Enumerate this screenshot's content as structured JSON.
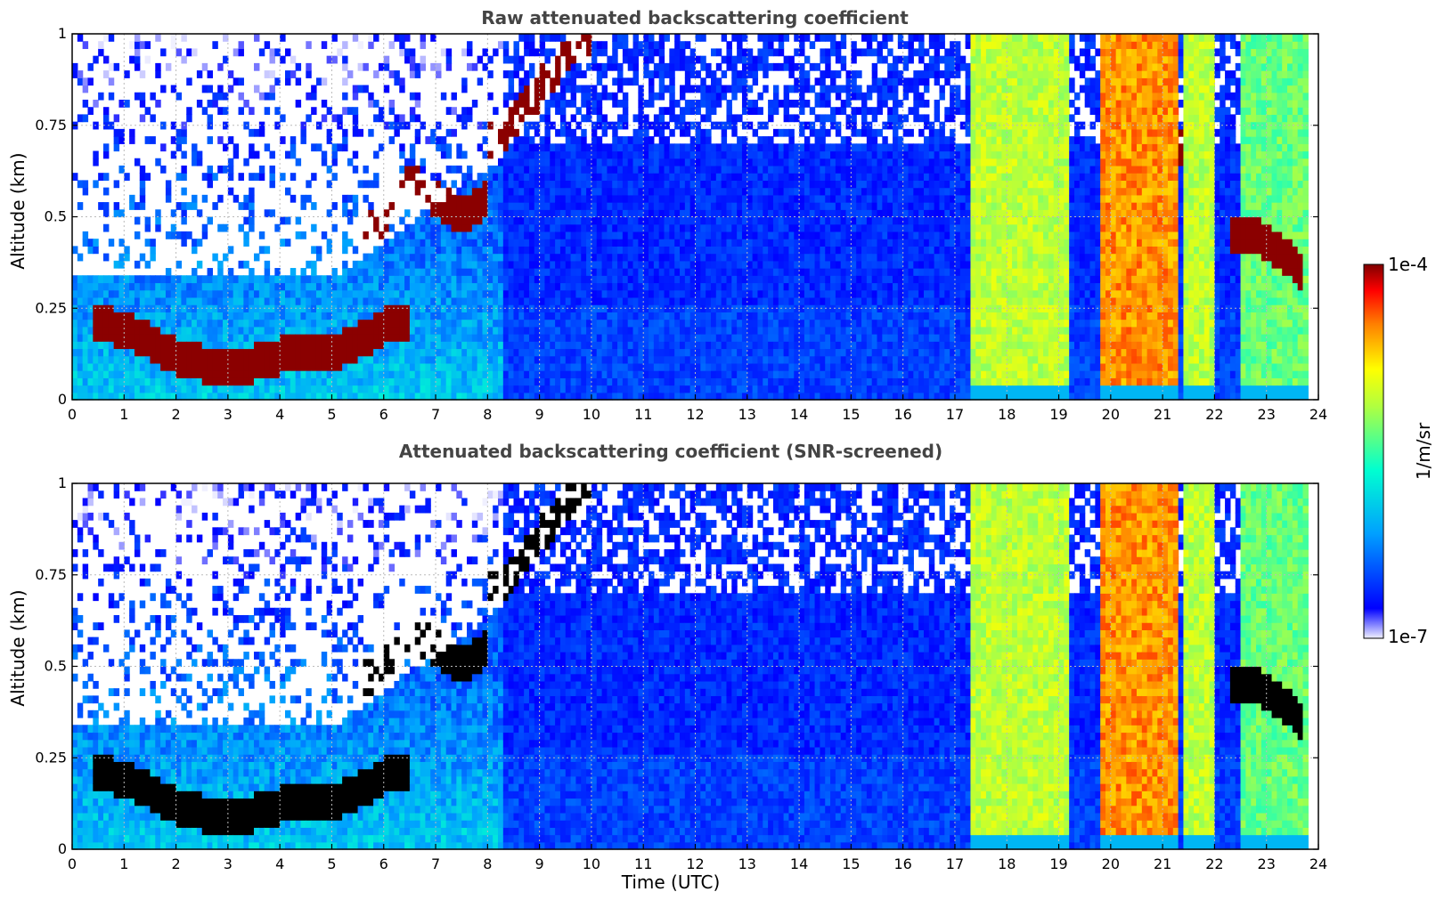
{
  "chart_data": [
    {
      "type": "heatmap",
      "title": "Raw attenuated backscattering coefficient",
      "xlabel": "",
      "ylabel": "Altitude (km)",
      "xlim": [
        0,
        24
      ],
      "ylim": [
        0,
        1
      ],
      "xticks": [
        "0",
        "1",
        "2",
        "3",
        "4",
        "5",
        "6",
        "7",
        "8",
        "9",
        "10",
        "11",
        "12",
        "13",
        "14",
        "15",
        "16",
        "17",
        "18",
        "19",
        "20",
        "21",
        "22",
        "23",
        "24"
      ],
      "yticks": [
        "0",
        "0.25",
        "0.5",
        "0.75",
        "1"
      ],
      "grid": true,
      "screened": false,
      "layers": [
        {
          "x": [
            0.4,
            1.2,
            2.0,
            3.0,
            4.0,
            5.0,
            5.5,
            6.0,
            6.5
          ],
          "y": [
            0.22,
            0.18,
            0.12,
            0.08,
            0.12,
            0.13,
            0.16,
            0.2,
            0.22
          ],
          "value": "high"
        },
        {
          "x": [
            5.5,
            6.0,
            6.5,
            7.0,
            7.5,
            8.0
          ],
          "y": [
            0.45,
            0.5,
            0.6,
            0.55,
            0.5,
            0.55
          ],
          "value": "high"
        },
        {
          "x": [
            8.0,
            8.5,
            9.0,
            9.5,
            10.0
          ],
          "y": [
            0.7,
            0.75,
            0.85,
            0.95,
            1.0
          ],
          "value": "high"
        },
        {
          "x": [
            21.3,
            21.4
          ],
          "y": [
            0.6,
            0.8
          ],
          "value": "high"
        },
        {
          "x": [
            22.3,
            22.8,
            23.3,
            23.7
          ],
          "y": [
            0.45,
            0.45,
            0.4,
            0.35
          ],
          "value": "high"
        }
      ],
      "bands": [
        {
          "x_start": 17.3,
          "x_end": 19.2,
          "level": "yellow-green"
        },
        {
          "x_start": 19.8,
          "x_end": 21.3,
          "level": "orange"
        },
        {
          "x_start": 21.4,
          "x_end": 22.0,
          "level": "yellow-green"
        },
        {
          "x_start": 22.5,
          "x_end": 23.8,
          "level": "green"
        }
      ]
    },
    {
      "type": "heatmap",
      "title": "Attenuated backscattering coefficient (SNR-screened)",
      "xlabel": "Time (UTC)",
      "ylabel": "Altitude (km)",
      "xlim": [
        0,
        24
      ],
      "ylim": [
        0,
        1
      ],
      "xticks": [
        "0",
        "1",
        "2",
        "3",
        "4",
        "5",
        "6",
        "7",
        "8",
        "9",
        "10",
        "11",
        "12",
        "13",
        "14",
        "15",
        "16",
        "17",
        "18",
        "19",
        "20",
        "21",
        "22",
        "23",
        "24"
      ],
      "yticks": [
        "0",
        "0.25",
        "0.5",
        "0.75",
        "1"
      ],
      "grid": true,
      "screened": true,
      "layers": [
        {
          "x": [
            0.4,
            1.2,
            2.0,
            3.0,
            4.0,
            5.0,
            5.5,
            6.0,
            6.5
          ],
          "y": [
            0.22,
            0.18,
            0.12,
            0.08,
            0.12,
            0.13,
            0.16,
            0.2,
            0.22
          ],
          "value": "saturated"
        },
        {
          "x": [
            5.5,
            6.0,
            6.5,
            7.0,
            7.5,
            8.0
          ],
          "y": [
            0.45,
            0.5,
            0.6,
            0.55,
            0.5,
            0.55
          ],
          "value": "saturated"
        },
        {
          "x": [
            8.0,
            8.5,
            9.0,
            9.5,
            10.0
          ],
          "y": [
            0.7,
            0.75,
            0.85,
            0.95,
            1.0
          ],
          "value": "saturated"
        },
        {
          "x": [
            22.3,
            22.8,
            23.3,
            23.7
          ],
          "y": [
            0.45,
            0.45,
            0.4,
            0.35
          ],
          "value": "saturated"
        }
      ],
      "bands": [
        {
          "x_start": 17.3,
          "x_end": 19.2,
          "level": "yellow-green"
        },
        {
          "x_start": 19.8,
          "x_end": 21.3,
          "level": "orange"
        },
        {
          "x_start": 21.4,
          "x_end": 22.0,
          "level": "yellow-green"
        },
        {
          "x_start": 22.5,
          "x_end": 23.8,
          "level": "green"
        }
      ]
    }
  ],
  "colorbar": {
    "label": "1/m/sr",
    "max_label": "1e-4",
    "min_label": "1e-7",
    "colormap": "jet",
    "colors": [
      "#f0f0ff",
      "#0000ff",
      "#00b0ff",
      "#00ffd0",
      "#b0ff40",
      "#ffff00",
      "#ff8000",
      "#ff0000",
      "#800000"
    ]
  }
}
